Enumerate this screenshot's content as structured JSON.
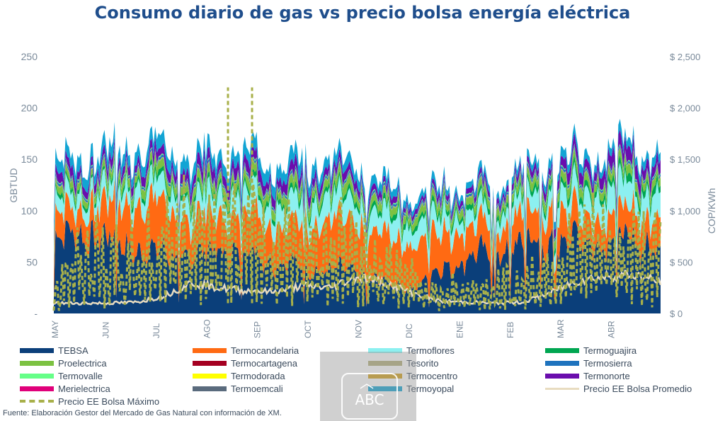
{
  "title": "Consumo diario de gas vs precio bolsa energía eléctrica",
  "source": "Fuente: Elaboración Gestor del Mercado de Gas Natural con información de XM.",
  "watermark_text": "ABC",
  "chart_data": {
    "type": "area",
    "title": "Consumo diario de gas vs precio bolsa energía eléctrica",
    "ylabel": "GBTUD",
    "y2label": "COP/KWh",
    "ylim": [
      0,
      250
    ],
    "y2lim": [
      0,
      2500
    ],
    "y_ticks": [
      "-",
      "50",
      "100",
      "150",
      "200",
      "250"
    ],
    "y2_ticks": [
      "$ 0",
      "$ 500",
      "$ 1,000",
      "$ 1,500",
      "$ 2,000",
      "$ 2,500"
    ],
    "x_labels": [
      "MAY",
      "JUN",
      "JUL",
      "AGO",
      "SEP",
      "OCT",
      "NOV",
      "DIC",
      "ENE",
      "FEB",
      "MAR",
      "ABR"
    ],
    "stacked_series": [
      {
        "name": "TEBSA",
        "color": "#0b3f7a",
        "anchors": [
          72,
          78,
          72,
          62,
          58,
          55,
          62,
          60,
          52,
          45,
          42,
          40,
          30,
          25,
          42,
          55,
          60,
          68,
          70,
          72,
          70,
          72,
          62
        ]
      },
      {
        "name": "Termocandelaria",
        "color": "#ff6a13",
        "anchors": [
          25,
          25,
          35,
          48,
          45,
          35,
          35,
          40,
          35,
          40,
          48,
          50,
          45,
          40,
          35,
          30,
          25,
          28,
          30,
          25,
          25,
          28,
          30
        ]
      },
      {
        "name": "Termoflores",
        "color": "#8cf0f0",
        "anchors": [
          15,
          15,
          15,
          18,
          18,
          20,
          20,
          22,
          20,
          22,
          22,
          20,
          20,
          18,
          18,
          15,
          15,
          15,
          18,
          20,
          25,
          25,
          22
        ]
      },
      {
        "name": "Termoguajira",
        "color": "#00a651",
        "anchors": [
          4,
          4,
          4,
          5,
          5,
          5,
          5,
          5,
          5,
          5,
          5,
          5,
          5,
          5,
          5,
          5,
          5,
          5,
          6,
          6,
          6,
          7,
          7
        ]
      },
      {
        "name": "Proelectrica",
        "color": "#7cc242",
        "anchors": [
          6,
          6,
          7,
          8,
          8,
          8,
          8,
          8,
          8,
          8,
          8,
          8,
          7,
          7,
          7,
          7,
          7,
          7,
          8,
          8,
          8,
          8,
          8
        ]
      },
      {
        "name": "Termocartagena",
        "color": "#a50021",
        "anchors": [
          0,
          0,
          0,
          0,
          0,
          0,
          0,
          0,
          0,
          0,
          0,
          0,
          0,
          0,
          0,
          0,
          0,
          0,
          0,
          0,
          0,
          0,
          0
        ]
      },
      {
        "name": "Tesorito",
        "color": "#b2b07a",
        "anchors": [
          1,
          1,
          1,
          1,
          1,
          1,
          1,
          1,
          1,
          1,
          1,
          1,
          1,
          1,
          1,
          1,
          1,
          1,
          1,
          1,
          1,
          1,
          1
        ]
      },
      {
        "name": "Termosierra",
        "color": "#1e73be",
        "anchors": [
          2,
          2,
          2,
          2,
          2,
          2,
          2,
          2,
          2,
          2,
          2,
          2,
          2,
          2,
          2,
          2,
          2,
          2,
          2,
          2,
          2,
          2,
          2
        ]
      },
      {
        "name": "Termovalle",
        "color": "#66ff88",
        "anchors": [
          1,
          1,
          1,
          1,
          1,
          1,
          1,
          1,
          1,
          1,
          1,
          1,
          1,
          1,
          1,
          1,
          1,
          1,
          1,
          1,
          1,
          1,
          1
        ]
      },
      {
        "name": "Termodorada",
        "color": "#ffff00",
        "anchors": [
          0,
          0,
          0,
          0,
          0,
          0,
          0,
          0,
          0,
          0,
          0,
          0,
          0,
          0,
          0,
          0,
          0,
          0,
          0,
          0,
          0,
          0,
          0
        ]
      },
      {
        "name": "Termocentro",
        "color": "#d4a017",
        "anchors": [
          0,
          0,
          0,
          0,
          0,
          0,
          0,
          0,
          0,
          0,
          0,
          0,
          0,
          0,
          0,
          0,
          0,
          0,
          0,
          0,
          0,
          0,
          0
        ]
      },
      {
        "name": "Termonorte",
        "color": "#6a0dad",
        "anchors": [
          8,
          8,
          8,
          9,
          9,
          10,
          10,
          10,
          10,
          10,
          8,
          8,
          6,
          5,
          5,
          5,
          6,
          6,
          8,
          10,
          12,
          13,
          10
        ]
      },
      {
        "name": "Merielectrica",
        "color": "#e0007a",
        "anchors": [
          0,
          0,
          0,
          0,
          0,
          0,
          0,
          0,
          0,
          0,
          0,
          0,
          0,
          0,
          0,
          0,
          0,
          0,
          0,
          0,
          0,
          0,
          0
        ]
      },
      {
        "name": "Termoemcali",
        "color": "#5a6b7d",
        "anchors": [
          0,
          0,
          0,
          0,
          0,
          0,
          0,
          0,
          0,
          0,
          0,
          0,
          0,
          0,
          0,
          0,
          0,
          0,
          0,
          0,
          0,
          0,
          0
        ]
      },
      {
        "name": "Termoyopal",
        "color": "#12a4d4",
        "anchors": [
          12,
          12,
          12,
          12,
          12,
          12,
          12,
          12,
          12,
          12,
          10,
          10,
          8,
          6,
          6,
          6,
          6,
          6,
          8,
          8,
          8,
          8,
          8
        ]
      }
    ],
    "price_series": [
      {
        "name": "Precio EE Bolsa Promedio",
        "axis": "right",
        "color": "#e8dcc0",
        "anchors": [
          100,
          100,
          100,
          110,
          170,
          300,
          250,
          220,
          210,
          270,
          250,
          360,
          300,
          200,
          120,
          110,
          100,
          110,
          200,
          320,
          360,
          380,
          300
        ]
      },
      {
        "name": "Precio EE Bolsa Máximo",
        "axis": "right",
        "color": "#a8b04a",
        "style": "dashed",
        "anchors": [
          150,
          800,
          600,
          700,
          900,
          1000,
          1000,
          900,
          900,
          900,
          850,
          800,
          600,
          400,
          300,
          300,
          300,
          400,
          600,
          800,
          900,
          800,
          700
        ],
        "peaks_at_2200": [
          "AGO",
          "SEP"
        ]
      }
    ],
    "legend_position": "bottom",
    "grid": false
  },
  "legend": [
    {
      "name": "TEBSA",
      "color": "#0b3f7a"
    },
    {
      "name": "Termocandelaria",
      "color": "#ff6a13"
    },
    {
      "name": "Termoflores",
      "color": "#8cf0f0"
    },
    {
      "name": "Termoguajira",
      "color": "#00a651"
    },
    {
      "name": "Proelectrica",
      "color": "#7cc242"
    },
    {
      "name": "Termocartagena",
      "color": "#a50021"
    },
    {
      "name": "Tesorito",
      "color": "#b2b07a"
    },
    {
      "name": "Termosierra",
      "color": "#1e73be"
    },
    {
      "name": "Termovalle",
      "color": "#66ff88"
    },
    {
      "name": "Termodorada",
      "color": "#ffff00"
    },
    {
      "name": "Termocentro",
      "color": "#d4a017"
    },
    {
      "name": "Termonorte",
      "color": "#6a0dad"
    },
    {
      "name": "Merielectrica",
      "color": "#e0007a"
    },
    {
      "name": "Termoemcali",
      "color": "#5a6b7d"
    },
    {
      "name": "Termoyopal",
      "color": "#12a4d4"
    },
    {
      "name": "Precio EE Bolsa Promedio",
      "color": "#e8dcc0",
      "style": "line"
    },
    {
      "name": "Precio EE Bolsa Máximo",
      "color": "#a8b04a",
      "style": "dashed"
    }
  ]
}
